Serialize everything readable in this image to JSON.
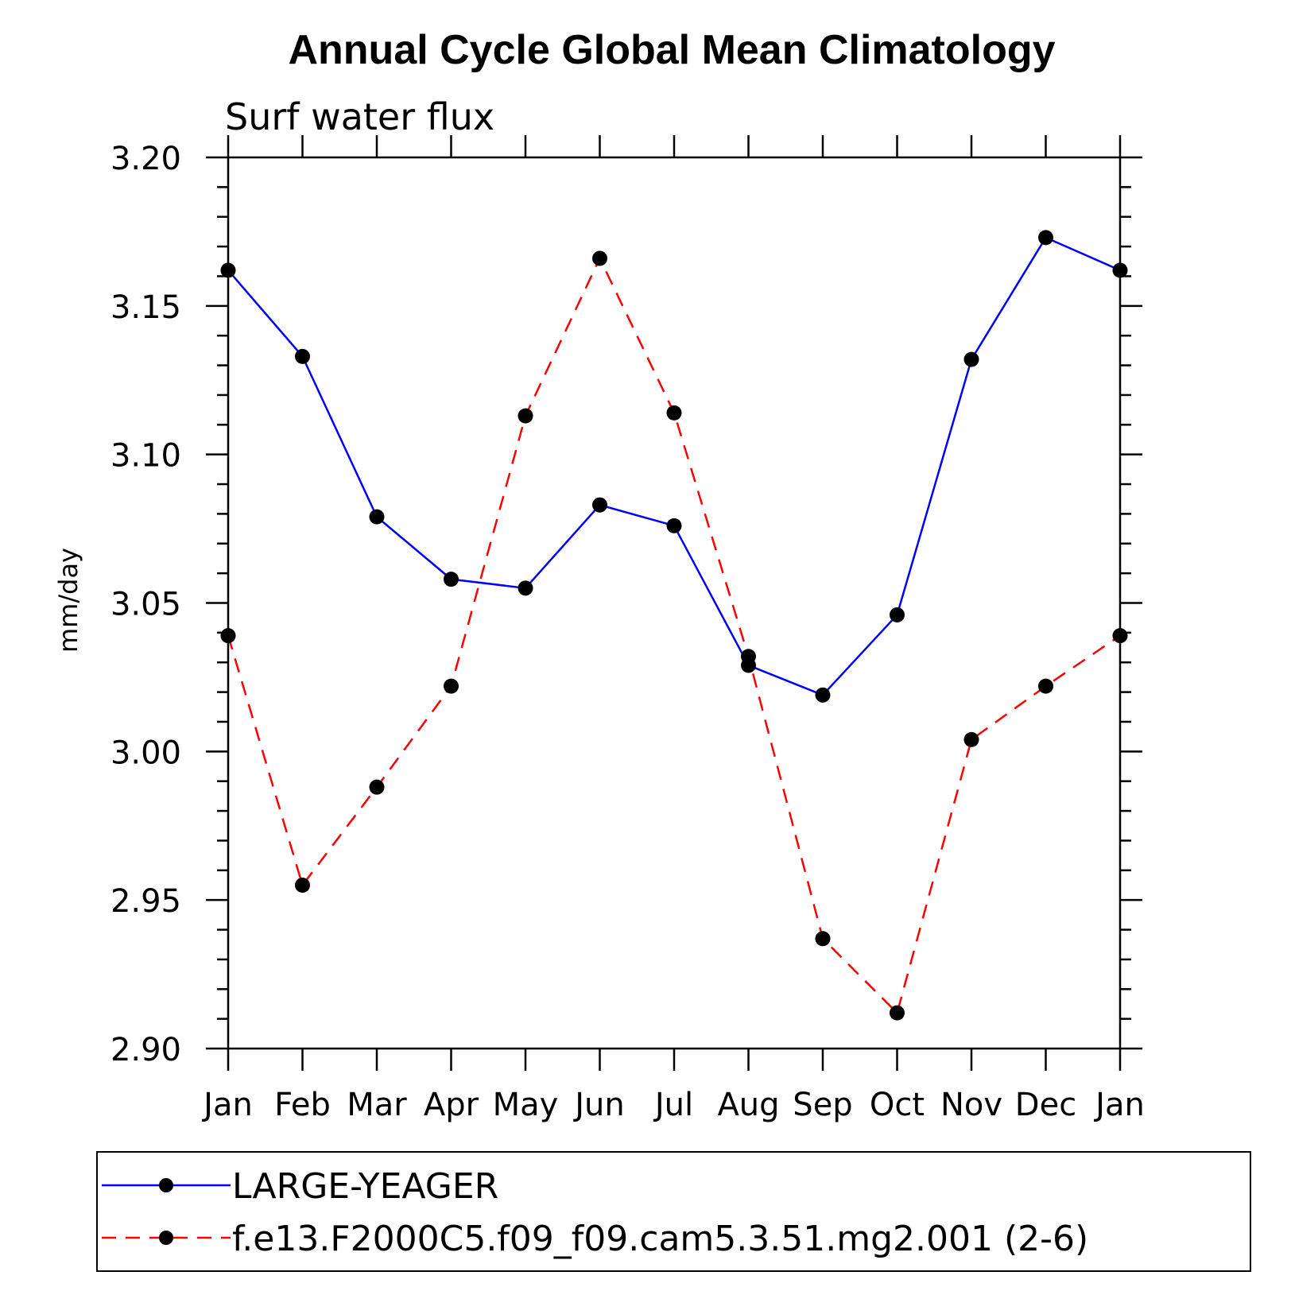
{
  "chart_data": {
    "type": "line",
    "title": "Annual Cycle Global Mean Climatology",
    "subtitle": "Surf water flux",
    "xlabel": "",
    "ylabel": "mm/day",
    "categories": [
      "Jan",
      "Feb",
      "Mar",
      "Apr",
      "May",
      "Jun",
      "Jul",
      "Aug",
      "Sep",
      "Oct",
      "Nov",
      "Dec",
      "Jan"
    ],
    "ylim": [
      2.9,
      3.2
    ],
    "yticks": [
      "2.90",
      "2.95",
      "3.00",
      "3.05",
      "3.10",
      "3.15",
      "3.20"
    ],
    "grid": false,
    "legend_position": "bottom",
    "series": [
      {
        "name": "LARGE-YEAGER",
        "color": "#0000ff",
        "style": "solid",
        "marker": "filled-circle",
        "values": [
          3.162,
          3.133,
          3.079,
          3.058,
          3.055,
          3.083,
          3.076,
          3.029,
          3.019,
          3.046,
          3.132,
          3.173,
          3.162
        ]
      },
      {
        "name": "f.e13.F2000C5.f09_f09.cam5.3.51.mg2.001 (2-6)",
        "color": "#ff0000",
        "style": "dashed",
        "marker": "filled-circle",
        "values": [
          3.039,
          2.955,
          2.988,
          3.022,
          3.113,
          3.166,
          3.114,
          3.032,
          2.937,
          2.912,
          3.004,
          3.022,
          3.039
        ]
      }
    ]
  }
}
